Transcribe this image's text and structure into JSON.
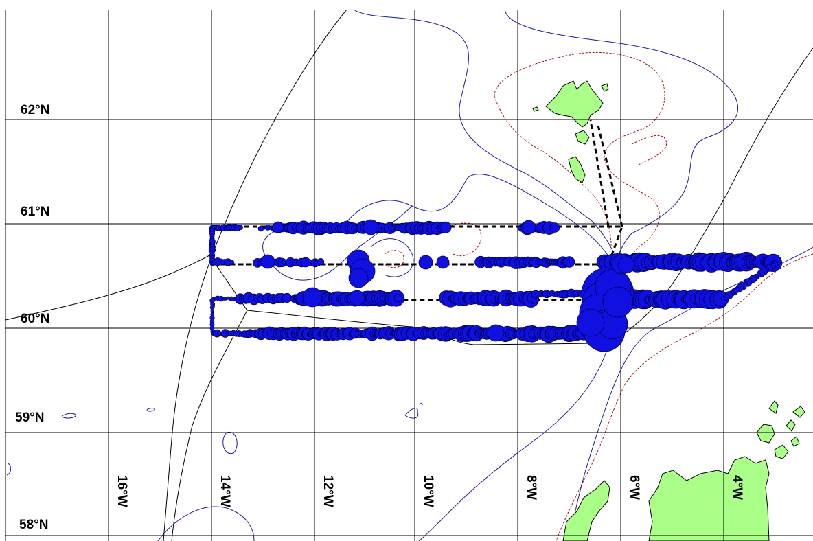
{
  "map": {
    "latitude_labels": [
      "62°N",
      "61°N",
      "60°N",
      "59°N",
      "58°N"
    ],
    "longitude_labels": [
      "16°W",
      "14°W",
      "12°W",
      "10°W",
      "8°W",
      "6°W",
      "4°W"
    ],
    "colors": {
      "land": "#aaff88",
      "survey_marks": "#1010e0",
      "bathymetry_contour": "#1a1aa8",
      "dashed_contour": "#a01010",
      "transect_line": "#000000",
      "grid": "#000000"
    }
  }
}
